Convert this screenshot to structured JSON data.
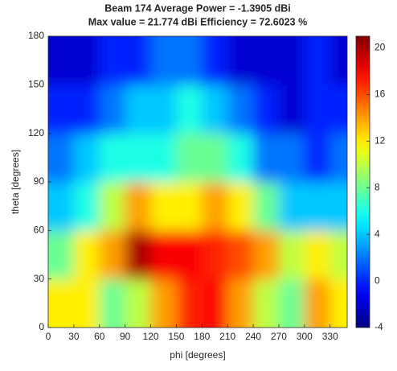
{
  "chart_data": {
    "type": "heatmap",
    "title": [
      "Beam 174 Average Power = -1.3905 dBi",
      "Max value = 21.774 dBi Efficiency = 72.6023 %"
    ],
    "x_label": "phi [degrees]",
    "y_label": "theta [degrees]",
    "x": [
      15,
      45,
      75,
      105,
      135,
      165,
      195,
      225,
      255,
      285,
      315,
      345
    ],
    "y": [
      15,
      45,
      75,
      105,
      135,
      165
    ],
    "z": [
      [
        12,
        12,
        8,
        10,
        14,
        17,
        18,
        14,
        10,
        8,
        14,
        12
      ],
      [
        8,
        12,
        14,
        20,
        18,
        18,
        17,
        16,
        14,
        10,
        12,
        10
      ],
      [
        4,
        6,
        10,
        14,
        12,
        12,
        14,
        12,
        8,
        4,
        4,
        4
      ],
      [
        2,
        4,
        6,
        6,
        6,
        8,
        8,
        6,
        2,
        2,
        0,
        2
      ],
      [
        0,
        0,
        2,
        4,
        4,
        6,
        4,
        2,
        0,
        -2,
        0,
        0
      ],
      [
        -2,
        -2,
        0,
        0,
        2,
        2,
        0,
        -2,
        -2,
        -2,
        0,
        -2
      ]
    ],
    "xlim": [
      0,
      350
    ],
    "xticks": [
      0,
      30,
      60,
      90,
      120,
      150,
      180,
      210,
      240,
      270,
      300,
      330
    ],
    "ylim": [
      0,
      180
    ],
    "yticks": [
      0,
      30,
      60,
      90,
      120,
      150,
      180
    ],
    "clim": [
      -4,
      21
    ],
    "cticks": [
      -4,
      0,
      4,
      8,
      12,
      16,
      20
    ],
    "colormap": "jet"
  }
}
